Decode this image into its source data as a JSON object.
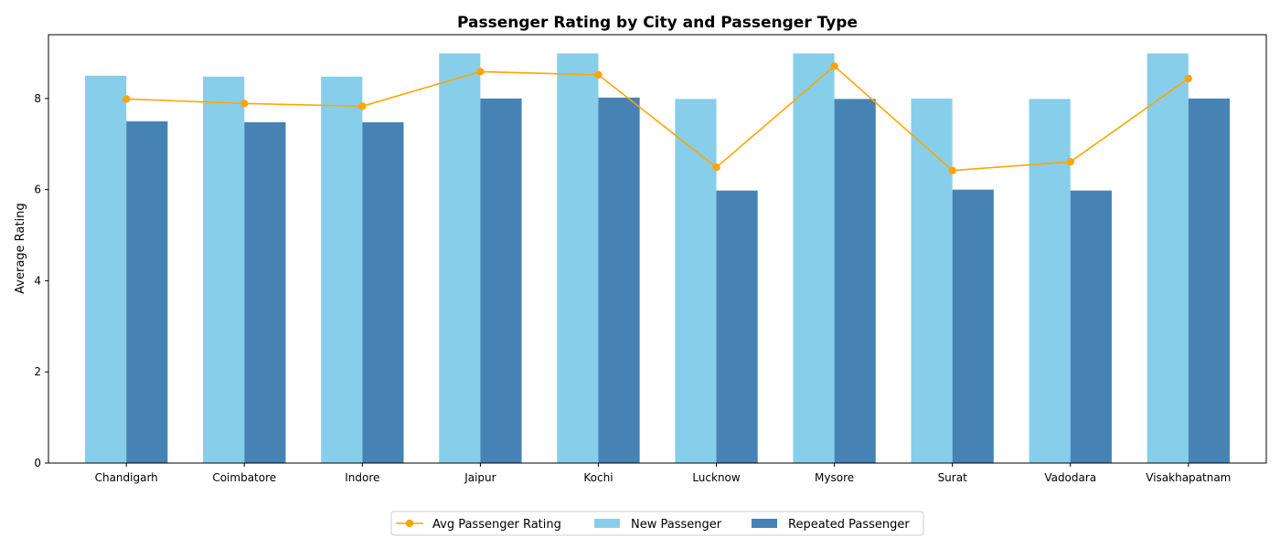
{
  "chart_data": {
    "type": "bar",
    "title": "Passenger Rating by City and Passenger Type",
    "xlabel": "",
    "ylabel": "Average Rating",
    "ylim": [
      0,
      9.4
    ],
    "yticks": [
      0,
      2,
      4,
      6,
      8
    ],
    "grid": false,
    "legend_position": "bottom-center",
    "categories": [
      "Chandigarh",
      "Coimbatore",
      "Indore",
      "Jaipur",
      "Kochi",
      "Lucknow",
      "Mysore",
      "Surat",
      "Vadodara",
      "Visakhapatnam"
    ],
    "series": [
      {
        "name": "New Passenger",
        "kind": "bar",
        "color": "#87ceeb",
        "values": [
          8.5,
          8.48,
          8.48,
          8.99,
          8.99,
          7.99,
          8.99,
          8.0,
          7.99,
          8.99
        ]
      },
      {
        "name": "Repeated Passenger",
        "kind": "bar",
        "color": "#4682b4",
        "values": [
          7.5,
          7.48,
          7.48,
          8.0,
          8.02,
          5.98,
          7.99,
          6.0,
          5.98,
          8.0
        ]
      },
      {
        "name": "Avg Passenger Rating",
        "kind": "line",
        "color": "#ffa500",
        "values": [
          7.99,
          7.89,
          7.83,
          8.59,
          8.52,
          6.49,
          8.71,
          6.42,
          6.61,
          8.44
        ]
      }
    ],
    "legend_order": [
      "Avg Passenger Rating",
      "New Passenger",
      "Repeated Passenger"
    ]
  }
}
